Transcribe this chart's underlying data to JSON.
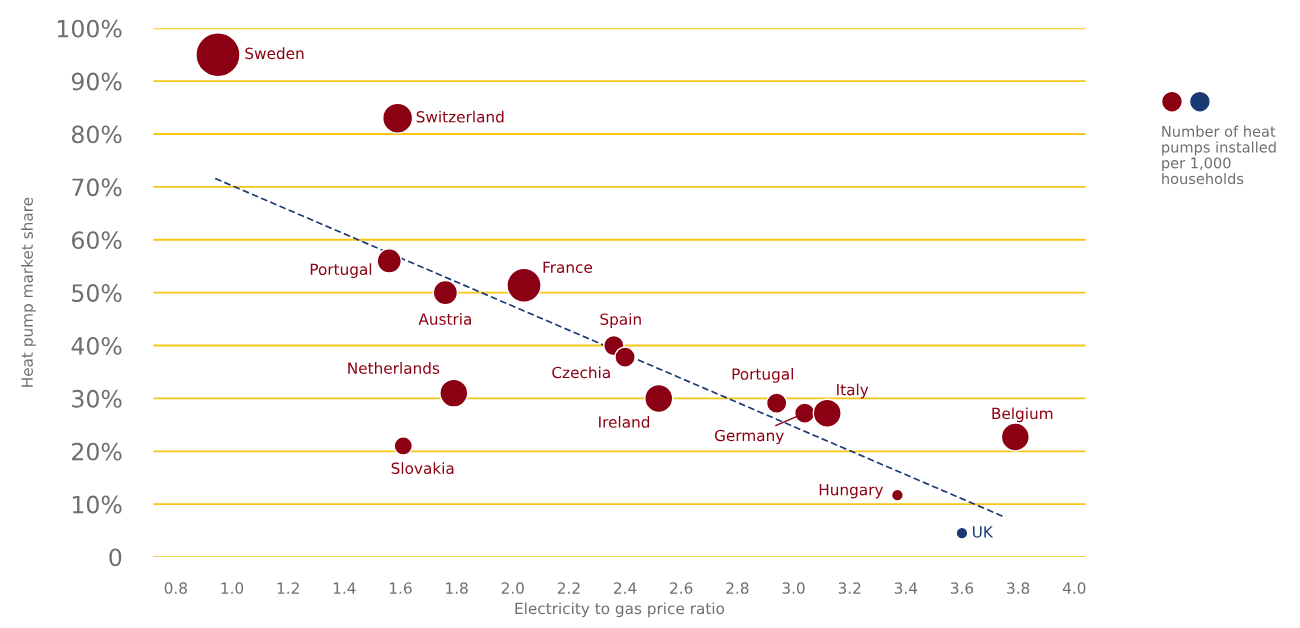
{
  "chart_data": {
    "type": "bubble",
    "xlabel": "Electricity to gas price ratio",
    "ylabel": "Heat pump market share",
    "xlim": [
      0.72,
      4.04
    ],
    "xticks": [
      {
        "value": 0.8,
        "label": "0.8"
      },
      {
        "value": 1.0,
        "label": "1.0"
      },
      {
        "value": 1.2,
        "label": "1.2"
      },
      {
        "value": 1.4,
        "label": "1.4"
      },
      {
        "value": 1.6,
        "label": "1.6"
      },
      {
        "value": 1.8,
        "label": "1.8"
      },
      {
        "value": 2.0,
        "label": "2.0"
      },
      {
        "value": 2.2,
        "label": "2.2"
      },
      {
        "value": 2.4,
        "label": "2.4"
      },
      {
        "value": 2.6,
        "label": "2.6"
      },
      {
        "value": 2.8,
        "label": "2.8"
      },
      {
        "value": 3.0,
        "label": "3.0"
      },
      {
        "value": 3.2,
        "label": "3.2"
      },
      {
        "value": 3.4,
        "label": "3.4"
      },
      {
        "value": 3.6,
        "label": "3.6"
      },
      {
        "value": 3.8,
        "label": "3.8"
      },
      {
        "value": 4.0,
        "label": "4.0"
      }
    ],
    "ylim": [
      0,
      100
    ],
    "yticks": [
      {
        "value": 0,
        "label": "0"
      },
      {
        "value": 10,
        "label": "10%"
      },
      {
        "value": 20,
        "label": "20%"
      },
      {
        "value": 30,
        "label": "30%"
      },
      {
        "value": 40,
        "label": "40%"
      },
      {
        "value": 50,
        "label": "50%"
      },
      {
        "value": 60,
        "label": "60%"
      },
      {
        "value": 70,
        "label": "70%"
      },
      {
        "value": 80,
        "label": "80%"
      },
      {
        "value": 90,
        "label": "90%"
      },
      {
        "value": 100,
        "label": "100%"
      }
    ],
    "grid": "y",
    "legend": false,
    "series": [
      {
        "color": "#8b0012",
        "x": [
          0.95,
          1.59,
          1.56,
          1.76,
          2.04,
          2.36,
          2.4,
          1.79,
          1.61,
          2.52,
          2.94,
          3.04,
          3.12,
          3.79,
          3.37
        ],
        "values": [
          95,
          83,
          56,
          50,
          51.4,
          40,
          37.8,
          31,
          21,
          30,
          29.1,
          27.2,
          27.2,
          22.7,
          11.7
        ],
        "sizes": [
          1,
          0.46,
          0.3,
          0.3,
          0.6,
          0.21,
          0.21,
          0.4,
          0.17,
          0.4,
          0.21,
          0.21,
          0.4,
          0.4,
          0.07
        ]
      },
      {
        "color": "#1a3a73",
        "x": [
          3.6
        ],
        "values": [
          4.5
        ],
        "sizes": [
          0.07
        ]
      },
      {
        "type": "line",
        "color": "#1a3a73",
        "line_style": "dashed",
        "x": [
          0.94,
          3.75
        ],
        "values": [
          71.6,
          7.6
        ]
      }
    ],
    "annotations": [
      {
        "text": "Sweden",
        "x": 0.95,
        "y": 95
      },
      {
        "text": "Switzerland",
        "x": 1.59,
        "y": 83
      },
      {
        "text": "Portugal",
        "x": 1.56,
        "y": 56
      },
      {
        "text": "Austria",
        "x": 1.76,
        "y": 50
      },
      {
        "text": "France",
        "x": 2.04,
        "y": 51.4
      },
      {
        "text": "Spain",
        "x": 2.36,
        "y": 40
      },
      {
        "text": "Czechia",
        "x": 2.4,
        "y": 37.8
      },
      {
        "text": "Netherlands",
        "x": 1.79,
        "y": 31
      },
      {
        "text": "Slovakia",
        "x": 1.61,
        "y": 21
      },
      {
        "text": "Ireland",
        "x": 2.52,
        "y": 30
      },
      {
        "text": "Portugal",
        "x": 2.94,
        "y": 29.1
      },
      {
        "text": "Germany",
        "x": 3.04,
        "y": 27.2
      },
      {
        "text": "Italy",
        "x": 3.12,
        "y": 27.2
      },
      {
        "text": "Belgium",
        "x": 3.79,
        "y": 22.7
      },
      {
        "text": "Hungary",
        "x": 3.37,
        "y": 11.7
      },
      {
        "text": "UK",
        "x": 3.6,
        "y": 4.5
      },
      "Number of heat pumps installed per 1,000 households"
    ]
  }
}
